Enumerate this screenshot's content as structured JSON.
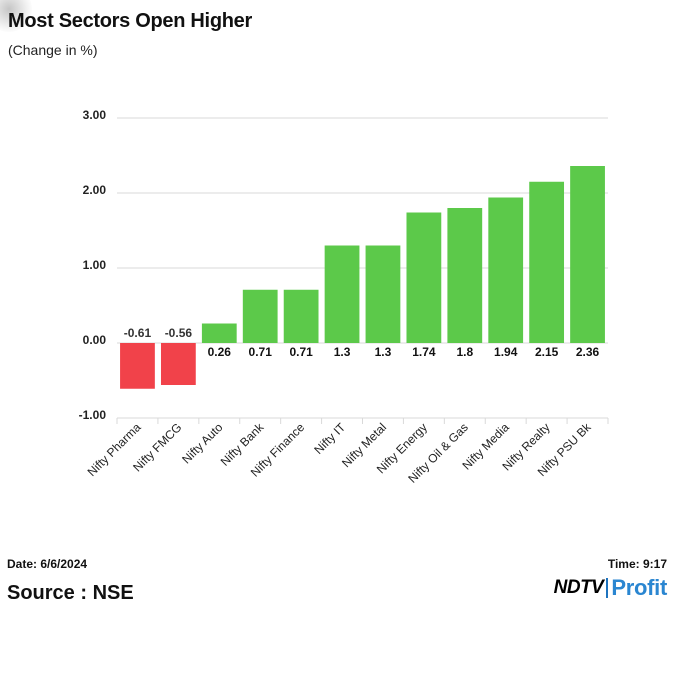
{
  "header": {
    "title": "Most Sectors Open Higher",
    "subtitle": "(Change in %)"
  },
  "footer": {
    "date": "Date: 6/6/2024",
    "time": "Time: 9:17",
    "source": "Source : NSE",
    "logo_left": "NDTV",
    "logo_right": "Profit"
  },
  "colors": {
    "positive": "#5cc94a",
    "negative": "#f1424a",
    "logo_blue": "#2a86d1"
  },
  "chart_data": {
    "type": "bar",
    "title": "Most Sectors Open Higher",
    "subtitle": "(Change in %)",
    "categories": [
      "Nifty Pharma",
      "Nifty FMCG",
      "Nifty Auto",
      "Nifty Bank",
      "Nifty Finance",
      "Nifty IT",
      "Nifty Metal",
      "Nifty Energy",
      "Nifty Oil & Gas",
      "Nifty Media",
      "Nifty Realty",
      "Nifty PSU Bk"
    ],
    "values": [
      -0.61,
      -0.56,
      0.26,
      0.71,
      0.71,
      1.3,
      1.3,
      1.74,
      1.8,
      1.94,
      2.15,
      2.36
    ],
    "value_labels": [
      "-0.61",
      "-0.56",
      "0.26",
      "0.71",
      "0.71",
      "1.3",
      "1.3",
      "1.74",
      "1.8",
      "1.94",
      "2.15",
      "2.36"
    ],
    "y_ticks": [
      3,
      2,
      1,
      0,
      -1
    ],
    "y_tick_labels": [
      "3.00",
      "2.00",
      "1.00",
      "0.00",
      "-1.00"
    ],
    "ylim": [
      -1,
      3
    ],
    "grid": true,
    "legend": "none"
  }
}
